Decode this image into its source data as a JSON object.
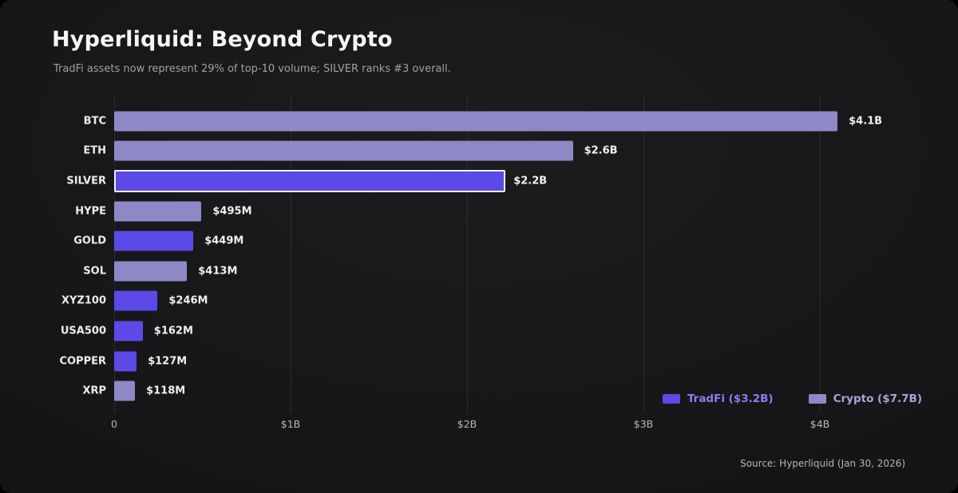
{
  "header": {
    "title": "Hyperliquid: Beyond Crypto",
    "subtitle": "TradFi assets now represent 29% of top-10 volume; SILVER ranks #3 overall."
  },
  "chart_data": {
    "type": "bar",
    "orientation": "horizontal",
    "title": "Hyperliquid: Beyond Crypto",
    "categories": [
      "BTC",
      "ETH",
      "SILVER",
      "HYPE",
      "GOLD",
      "SOL",
      "XYZ100",
      "USA500",
      "COPPER",
      "XRP"
    ],
    "values_millions_usd": [
      4100,
      2600,
      2200,
      495,
      449,
      413,
      246,
      162,
      127,
      118
    ],
    "value_labels": [
      "$4.1B",
      "$2.6B",
      "$2.2B",
      "$495M",
      "$449M",
      "$413M",
      "$246M",
      "$162M",
      "$127M",
      "$118M"
    ],
    "bar_series": [
      "crypto",
      "crypto",
      "tradfi",
      "crypto",
      "tradfi",
      "crypto",
      "tradfi",
      "tradfi",
      "tradfi",
      "crypto"
    ],
    "highlighted_category": "SILVER",
    "x_ticks": [
      "0",
      "$1B",
      "$2B",
      "$3B",
      "$4B"
    ],
    "x_tick_values": [
      0,
      1000,
      2000,
      3000,
      4000
    ],
    "xlim": [
      0,
      4285
    ],
    "grid": "vertical",
    "legend_position": "bottom-right",
    "colors": {
      "tradfi": "#5b4ae8",
      "crypto": "#8d89c6",
      "highlight_border": "#eef0f4"
    },
    "legend": [
      {
        "id": "tradfi",
        "label": "TradFi ($3.2B)",
        "swatch_color": "#5b4ae8",
        "text_color": "#8b7cf4"
      },
      {
        "id": "crypto",
        "label": "Crypto ($7.7B)",
        "swatch_color": "#8d89c6",
        "text_color": "#a9a5d6"
      }
    ]
  },
  "footer": {
    "source": "Source: Hyperliquid (Jan 30, 2026)"
  }
}
